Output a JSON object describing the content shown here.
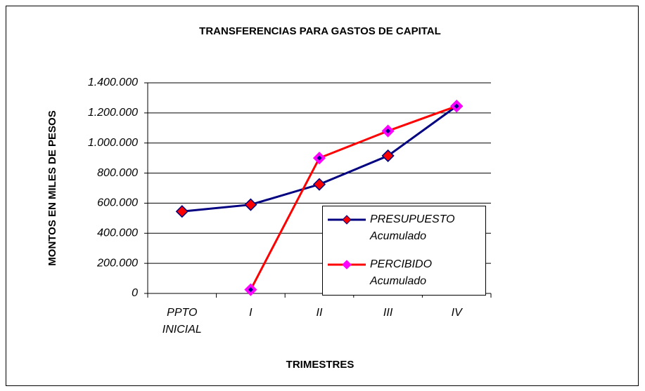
{
  "chart_data": {
    "type": "line",
    "title": "TRANSFERENCIAS PARA GASTOS DE CAPITAL",
    "x_label": "TRIMESTRES",
    "y_label": "MONTOS EN MILES DE PESOS",
    "categories": [
      "PPTO INICIAL",
      "I",
      "II",
      "III",
      "IV"
    ],
    "series": [
      {
        "name": "PRESUPUESTO Acumulado",
        "color": "#000080",
        "marker_color": "#ff0000",
        "values": [
          545000,
          590000,
          725000,
          915000,
          1245000
        ]
      },
      {
        "name": "PERCIBIDO Acumulado",
        "color": "#ff0000",
        "marker_color": "#ff00ff",
        "values": [
          null,
          25000,
          900000,
          1080000,
          1245000
        ]
      }
    ],
    "ylim": [
      0,
      1400000
    ],
    "yticks": [
      {
        "value": 0,
        "label": "0"
      },
      {
        "value": 200000,
        "label": "200.000"
      },
      {
        "value": 400000,
        "label": "400.000"
      },
      {
        "value": 600000,
        "label": "600.000"
      },
      {
        "value": 800000,
        "label": "800.000"
      },
      {
        "value": 1000000,
        "label": "1.000.000"
      },
      {
        "value": 1200000,
        "label": "1.200.000"
      },
      {
        "value": 1400000,
        "label": "1.400.000"
      }
    ],
    "grid": true,
    "legend": "right"
  }
}
